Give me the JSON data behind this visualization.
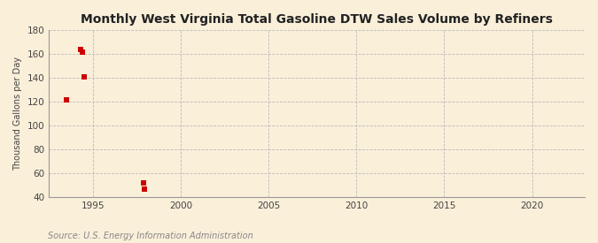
{
  "title": "Monthly West Virginia Total Gasoline DTW Sales Volume by Refiners",
  "ylabel": "Thousand Gallons per Day",
  "source": "Source: U.S. Energy Information Administration",
  "background_color": "#faefd9",
  "plot_background_color": "#faefd9",
  "grid_color": "#bbbbbb",
  "marker_color": "#cc0000",
  "marker_size": 4,
  "xlim": [
    1992.5,
    2023
  ],
  "ylim": [
    40,
    180
  ],
  "xticks": [
    1995,
    2000,
    2005,
    2010,
    2015,
    2020
  ],
  "yticks": [
    40,
    60,
    80,
    100,
    120,
    140,
    160,
    180
  ],
  "data_x": [
    1993.5,
    1994.3,
    1994.4,
    1994.5,
    1997.9,
    1997.95
  ],
  "data_y": [
    122,
    164,
    162,
    141,
    52,
    47
  ]
}
